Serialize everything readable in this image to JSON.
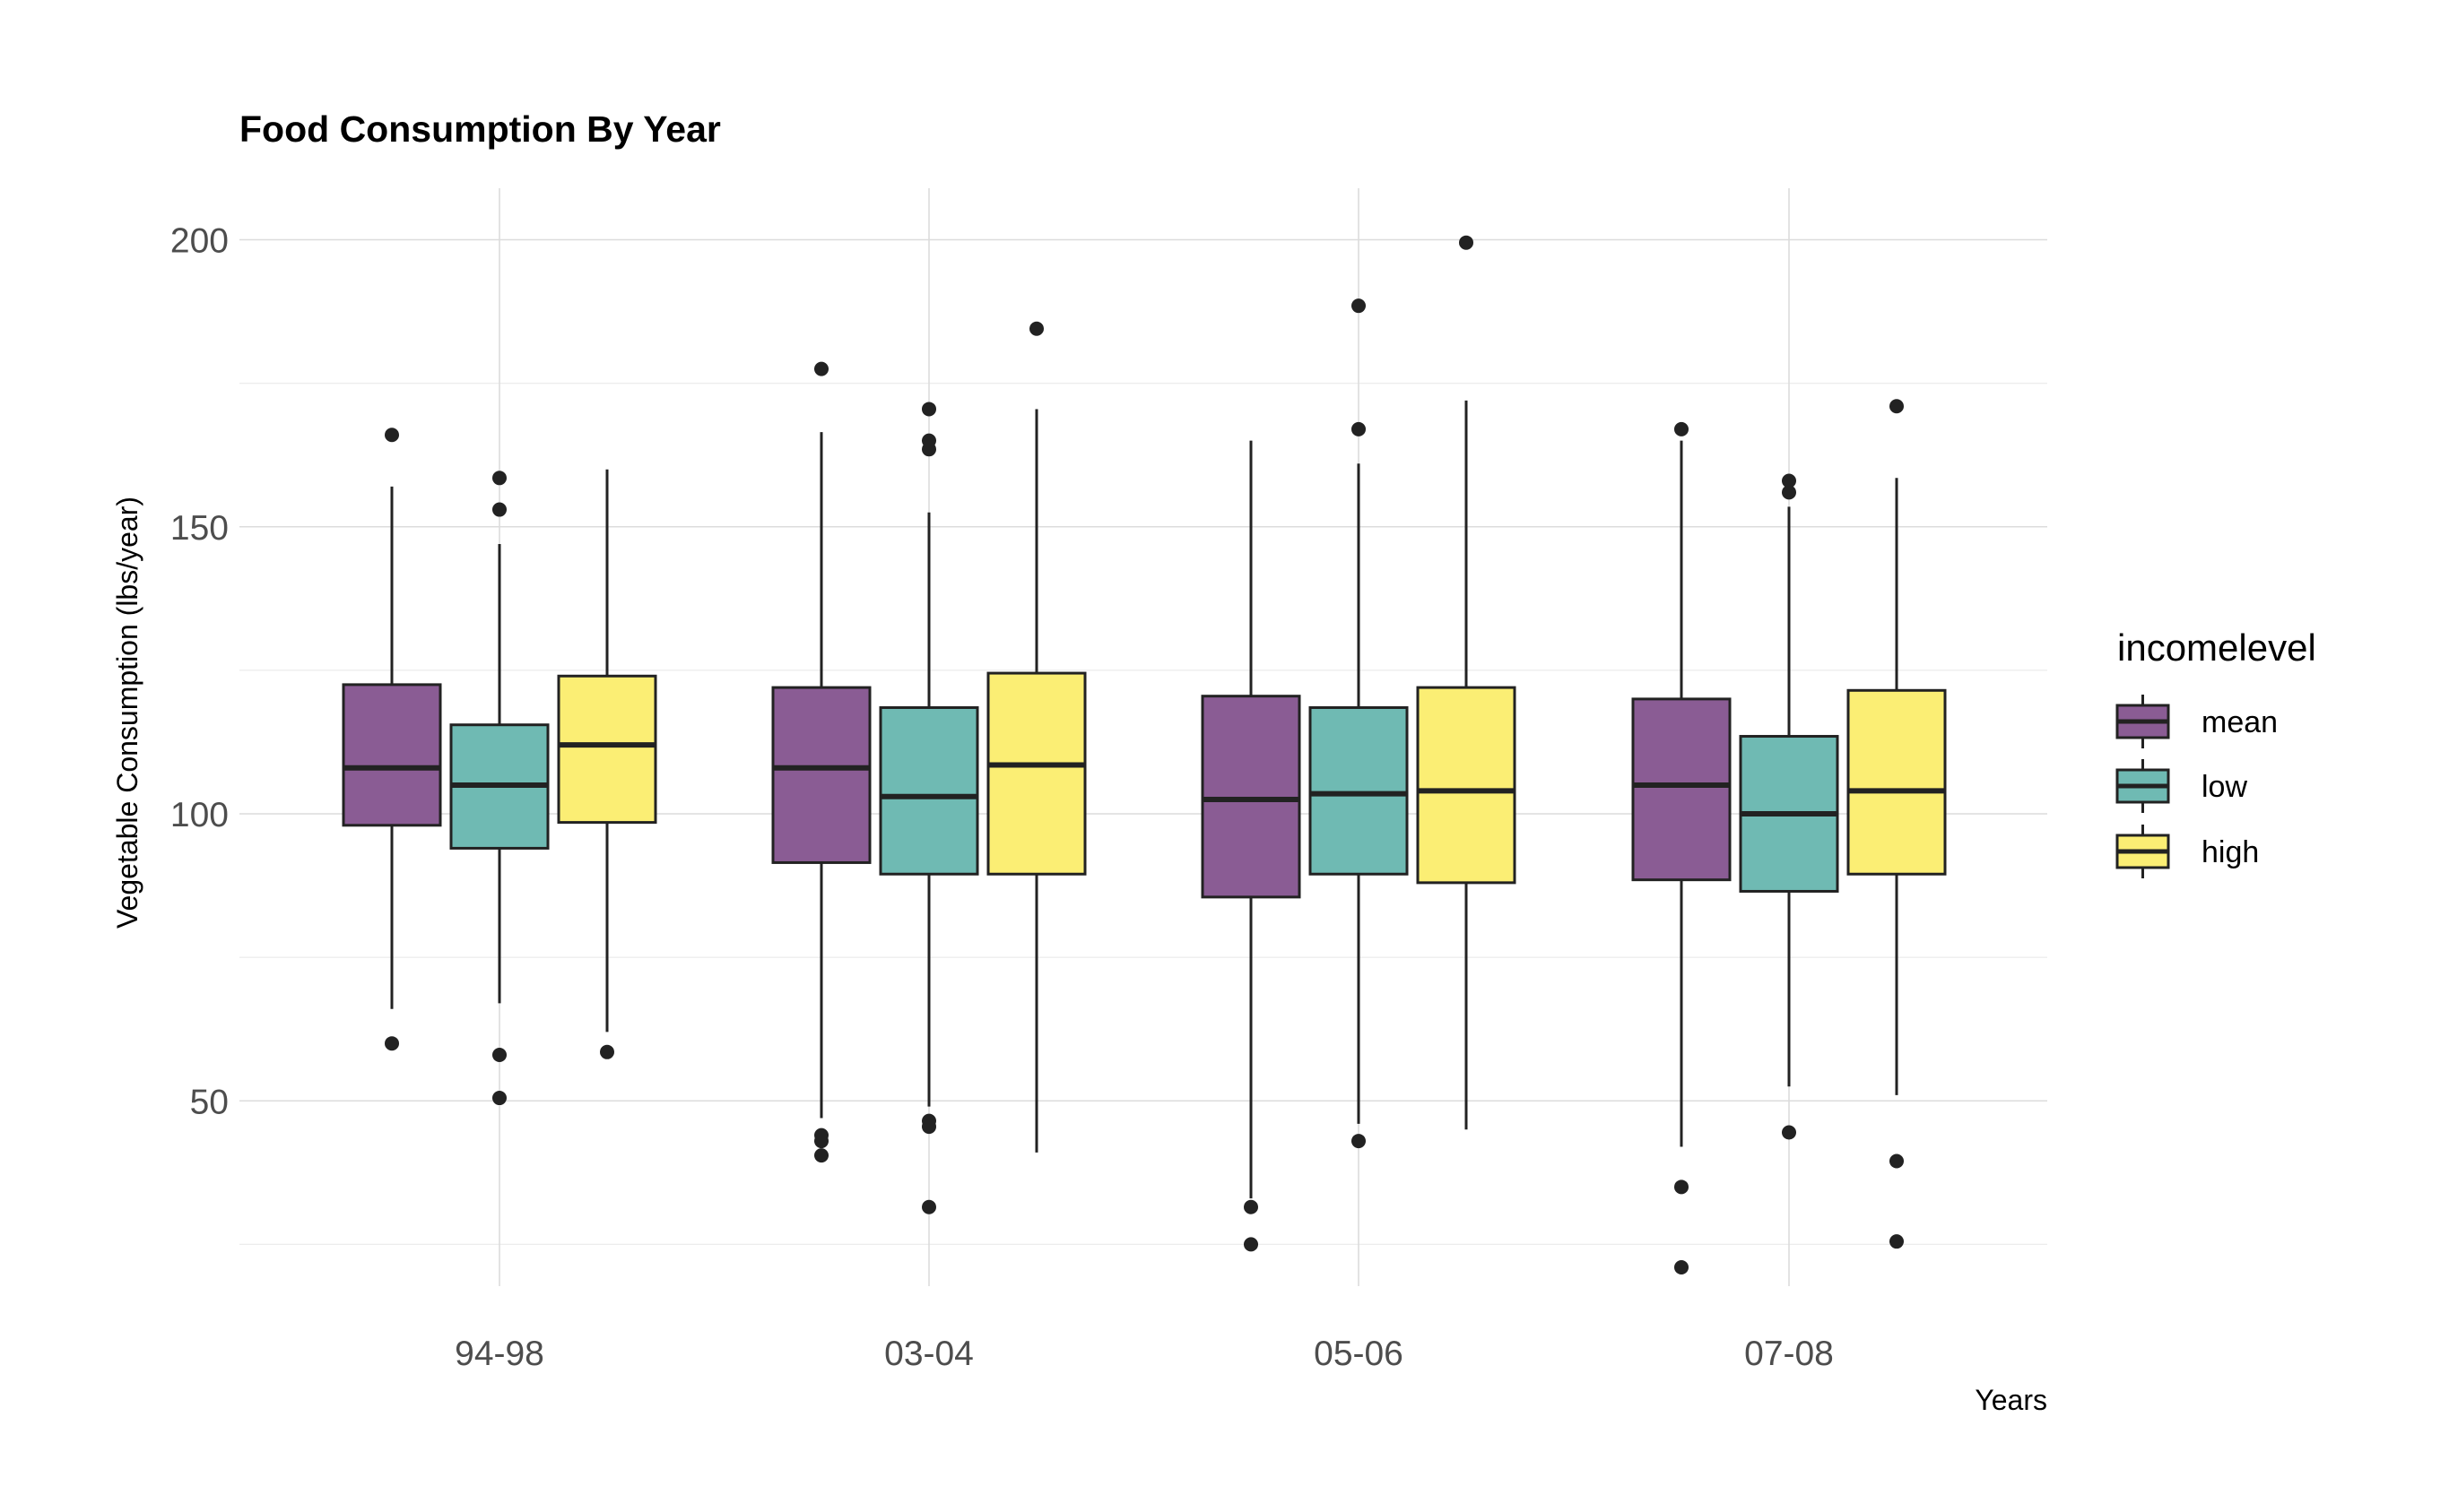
{
  "chart_data": {
    "type": "box",
    "title": "Food Consumption By Year",
    "xlabel": "Years",
    "ylabel": "Vegetable Consumption (lbs/year)",
    "categories": [
      "94-98",
      "03-04",
      "05-06",
      "07-08"
    ],
    "y_ticks": [
      50,
      100,
      150,
      200
    ],
    "ylim": [
      13,
      209
    ],
    "grid": true,
    "legend": {
      "title": "incomelevel",
      "position": "right"
    },
    "series": [
      {
        "name": "mean",
        "color": "#8a5c94",
        "boxes": [
          {
            "whisker_low": 66,
            "q1": 98,
            "median": 108,
            "q3": 122.5,
            "whisker_high": 157,
            "outliers": [
              166,
              60
            ]
          },
          {
            "whisker_low": 47,
            "q1": 91.5,
            "median": 108,
            "q3": 122,
            "whisker_high": 166.5,
            "outliers": [
              177.5,
              44,
              43,
              40.5
            ]
          },
          {
            "whisker_low": 33,
            "q1": 85.5,
            "median": 102.5,
            "q3": 120.5,
            "whisker_high": 165,
            "outliers": [
              31.5,
              25
            ]
          },
          {
            "whisker_low": 42,
            "q1": 88.5,
            "median": 105,
            "q3": 120,
            "whisker_high": 165,
            "outliers": [
              167,
              35,
              21
            ]
          }
        ]
      },
      {
        "name": "low",
        "color": "#6fbab3",
        "boxes": [
          {
            "whisker_low": 67,
            "q1": 94,
            "median": 105,
            "q3": 115.5,
            "whisker_high": 147,
            "outliers": [
              158.5,
              153,
              58,
              50.5
            ]
          },
          {
            "whisker_low": 49,
            "q1": 89.5,
            "median": 103,
            "q3": 118.5,
            "whisker_high": 152.5,
            "outliers": [
              170.5,
              165,
              163.5,
              46.5,
              45.5,
              31.5
            ]
          },
          {
            "whisker_low": 46,
            "q1": 89.5,
            "median": 103.5,
            "q3": 118.5,
            "whisker_high": 161,
            "outliers": [
              188.5,
              167,
              43
            ]
          },
          {
            "whisker_low": 52.5,
            "q1": 86.5,
            "median": 100,
            "q3": 113.5,
            "whisker_high": 153.5,
            "outliers": [
              158,
              156,
              44.5
            ]
          }
        ]
      },
      {
        "name": "high",
        "color": "#fbee74",
        "boxes": [
          {
            "whisker_low": 62,
            "q1": 98.5,
            "median": 112,
            "q3": 124,
            "whisker_high": 160,
            "outliers": [
              58.5
            ]
          },
          {
            "whisker_low": 41,
            "q1": 89.5,
            "median": 108.5,
            "q3": 124.5,
            "whisker_high": 170.5,
            "outliers": [
              184.5
            ]
          },
          {
            "whisker_low": 45,
            "q1": 88,
            "median": 104,
            "q3": 122,
            "whisker_high": 172,
            "outliers": [
              199.5
            ]
          },
          {
            "whisker_low": 51,
            "q1": 89.5,
            "median": 104,
            "q3": 121.5,
            "whisker_high": 158.5,
            "outliers": [
              171,
              39.5,
              25.5
            ]
          }
        ]
      }
    ]
  }
}
